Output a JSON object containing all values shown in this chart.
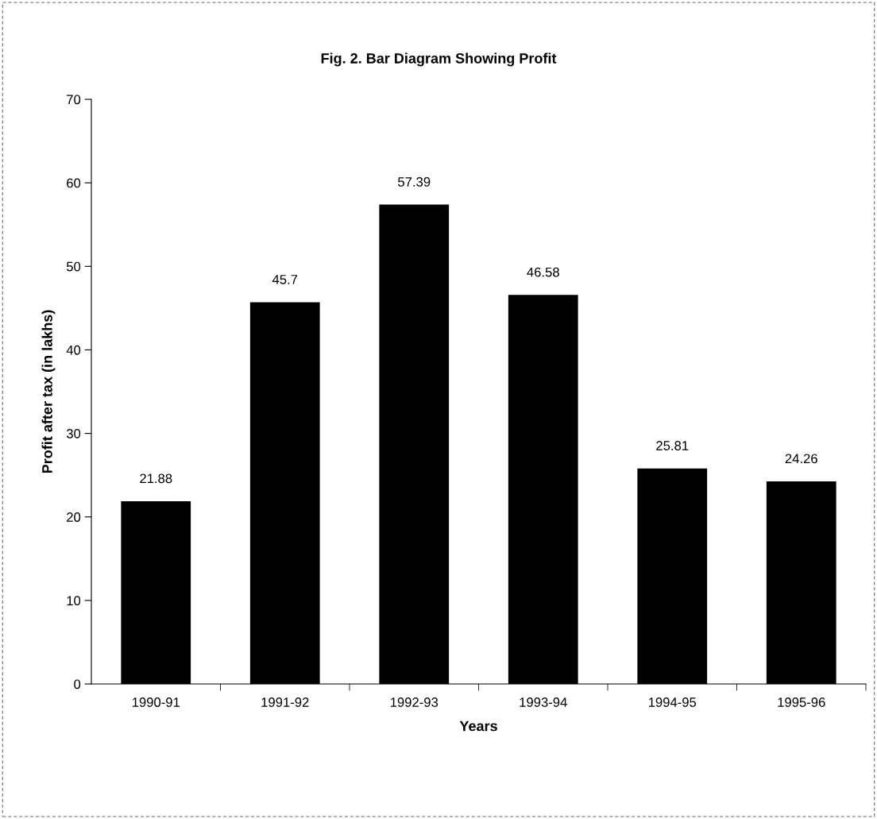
{
  "chart_data": {
    "type": "bar",
    "title": "Fig. 2. Bar Diagram Showing Profit",
    "xlabel": "Years",
    "ylabel": "Profit after tax (in lakhs)",
    "categories": [
      "1990-91",
      "1991-92",
      "1992-93",
      "1993-94",
      "1994-95",
      "1995-96"
    ],
    "values": [
      21.88,
      45.7,
      57.39,
      46.58,
      25.81,
      24.26
    ],
    "color": "#000000",
    "ylim": [
      0,
      70
    ],
    "yticks": [
      0,
      10,
      20,
      30,
      40,
      50,
      60,
      70
    ],
    "grid": false,
    "data_labels": true,
    "legend": false
  }
}
